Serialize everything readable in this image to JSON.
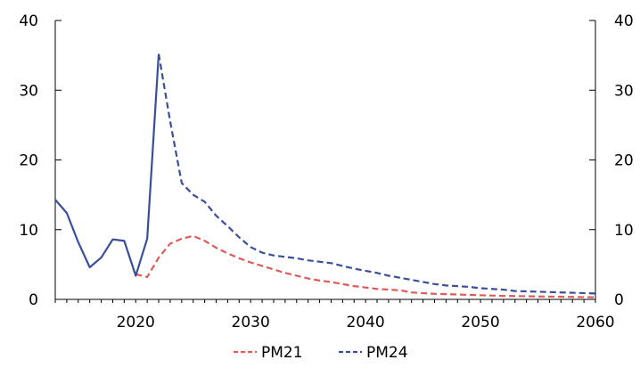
{
  "chart_data": {
    "type": "line",
    "title": "",
    "xlabel": "",
    "ylabel": "",
    "xlim": [
      2013,
      2060
    ],
    "ylim": [
      0,
      40
    ],
    "y_ticks": [
      0,
      10,
      20,
      30,
      40
    ],
    "x_ticks": [
      2020,
      2030,
      2040,
      2050,
      2060
    ],
    "y_axis_right": true,
    "grid": false,
    "legend": "bottom",
    "series": [
      {
        "name": "PM21",
        "color": "#e05a5a",
        "style": "dashed",
        "x": [
          2020,
          2021,
          2022,
          2023,
          2024,
          2025,
          2026,
          2027,
          2028,
          2029,
          2030,
          2031,
          2032,
          2033,
          2034,
          2035,
          2036,
          2037,
          2038,
          2039,
          2040,
          2041,
          2042,
          2043,
          2044,
          2045,
          2046,
          2047,
          2048,
          2049,
          2050,
          2051,
          2052,
          2053,
          2054,
          2055,
          2056,
          2057,
          2058,
          2059,
          2060
        ],
        "values": [
          3.6,
          3.2,
          6.0,
          8.0,
          8.7,
          9.1,
          8.4,
          7.4,
          6.6,
          5.9,
          5.3,
          4.8,
          4.3,
          3.8,
          3.4,
          3.0,
          2.7,
          2.5,
          2.2,
          1.9,
          1.7,
          1.5,
          1.4,
          1.3,
          1.0,
          0.9,
          0.8,
          0.75,
          0.7,
          0.65,
          0.6,
          0.55,
          0.5,
          0.48,
          0.45,
          0.42,
          0.4,
          0.38,
          0.35,
          0.33,
          0.3
        ]
      },
      {
        "name": "PM24",
        "color": "#3a4f9c",
        "style": "solid-then-dashed",
        "dashed_from_x": 2022,
        "x": [
          2013,
          2014,
          2015,
          2016,
          2017,
          2018,
          2019,
          2020,
          2021,
          2022,
          2023,
          2024,
          2025,
          2026,
          2027,
          2028,
          2029,
          2030,
          2031,
          2032,
          2033,
          2034,
          2035,
          2036,
          2037,
          2038,
          2039,
          2040,
          2041,
          2042,
          2043,
          2044,
          2045,
          2046,
          2047,
          2048,
          2049,
          2050,
          2051,
          2052,
          2053,
          2054,
          2055,
          2056,
          2057,
          2058,
          2059,
          2060
        ],
        "values": [
          14.3,
          12.4,
          8.2,
          4.6,
          6.0,
          8.6,
          8.4,
          3.4,
          8.7,
          35.2,
          25.5,
          16.7,
          15.0,
          14.0,
          12.0,
          10.5,
          8.9,
          7.5,
          6.7,
          6.3,
          6.1,
          5.9,
          5.6,
          5.4,
          5.2,
          4.8,
          4.4,
          4.1,
          3.8,
          3.4,
          3.1,
          2.8,
          2.5,
          2.2,
          2.0,
          1.9,
          1.8,
          1.6,
          1.5,
          1.4,
          1.2,
          1.15,
          1.1,
          1.05,
          1.0,
          0.95,
          0.9,
          0.85
        ]
      }
    ]
  }
}
